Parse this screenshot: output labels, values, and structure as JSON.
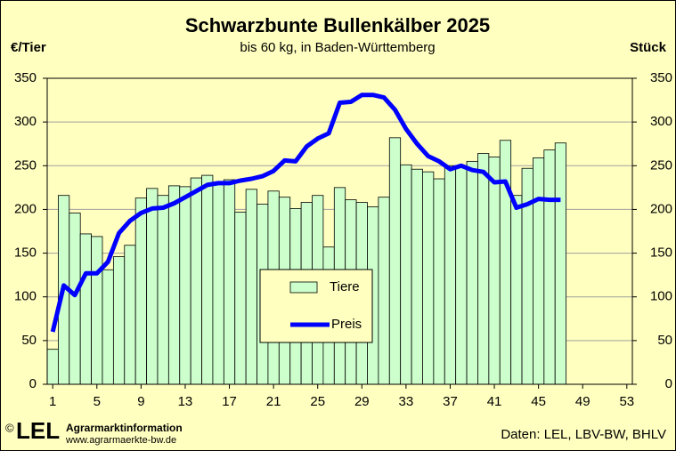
{
  "chart_data": {
    "type": "bar-line",
    "title": "Schwarzbunte Bullenkälber 2025",
    "subtitle": "bis 60 kg, in Baden-Württemberg",
    "y_label": "€/Tier",
    "y2_label": "Stück",
    "x": [
      1,
      2,
      3,
      4,
      5,
      6,
      7,
      8,
      9,
      10,
      11,
      12,
      13,
      14,
      15,
      16,
      17,
      18,
      19,
      20,
      21,
      22,
      23,
      24,
      25,
      26,
      27,
      28,
      29,
      30,
      31,
      32,
      33,
      34,
      35,
      36,
      37,
      38,
      39,
      40,
      41,
      42,
      43,
      44,
      45,
      46,
      47,
      48,
      49,
      50,
      51,
      52,
      53
    ],
    "xlim": [
      0.5,
      53.5
    ],
    "xticks": [
      1,
      5,
      9,
      13,
      17,
      21,
      25,
      29,
      33,
      37,
      41,
      45,
      49,
      53
    ],
    "ylim": [
      0,
      350
    ],
    "yticks": [
      0,
      50,
      100,
      150,
      200,
      250,
      300,
      350
    ],
    "y2lim": [
      0,
      350
    ],
    "y2ticks": [
      0,
      50,
      100,
      150,
      200,
      250,
      300,
      350
    ],
    "grid": true,
    "series": [
      {
        "name": "Tiere",
        "type": "bar",
        "axis": "y2",
        "color": "#ccffcc",
        "values": [
          40,
          216,
          196,
          172,
          169,
          131,
          146,
          159,
          213,
          224,
          216,
          227,
          226,
          236,
          239,
          230,
          234,
          197,
          223,
          206,
          221,
          214,
          201,
          208,
          216,
          157,
          225,
          211,
          208,
          203,
          214,
          282,
          251,
          246,
          243,
          235,
          250,
          250,
          255,
          264,
          260,
          279,
          216,
          247,
          259,
          268,
          276,
          null,
          null,
          null,
          null,
          null,
          null
        ]
      },
      {
        "name": "Preis",
        "type": "line",
        "color": "#0000ff",
        "values": [
          60,
          113,
          102,
          127,
          127,
          140,
          173,
          187,
          196,
          201,
          202,
          207,
          214,
          221,
          228,
          230,
          230,
          233,
          235,
          238,
          244,
          256,
          255,
          272,
          281,
          287,
          322,
          323,
          331,
          331,
          328,
          314,
          292,
          275,
          261,
          255,
          246,
          250,
          245,
          243,
          231,
          232,
          202,
          206,
          212,
          211,
          211,
          null,
          null,
          null,
          null,
          null,
          null
        ]
      }
    ],
    "legend": "center",
    "footer": {
      "copyright": "©",
      "logo": "LEL",
      "org": "Agrarmarktinformation",
      "url": "www.agrarmaerkte-bw.de",
      "source": "Daten: LEL, LBV-BW, BHLV"
    }
  }
}
